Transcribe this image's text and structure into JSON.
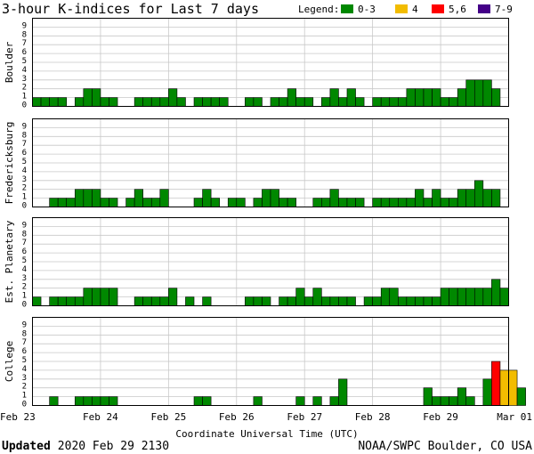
{
  "chart_data": {
    "type": "bar",
    "title": "3-hour K-indices for Last 7 days",
    "legend": {
      "title": "Legend:",
      "placement": "top-right",
      "items": [
        {
          "label": "0-3",
          "color": "#008800"
        },
        {
          "label": "4",
          "color": "#f2bc00"
        },
        {
          "label": "5,6",
          "color": "#ff0000"
        },
        {
          "label": "7-9",
          "color": "#440088"
        }
      ]
    },
    "ylim": [
      0,
      9
    ],
    "y_ticks": [
      "0",
      "1",
      "2",
      "3",
      "4",
      "5",
      "6",
      "7",
      "8",
      "9"
    ],
    "x_ticks": [
      "Feb 23",
      "Feb 24",
      "Feb 25",
      "Feb 26",
      "Feb 27",
      "Feb 28",
      "Feb 29",
      "Mar 01"
    ],
    "xlabel": "Coordinate Universal Time (UTC)",
    "bins_per_day": 8,
    "grid": true,
    "panels": [
      {
        "label": "Boulder",
        "values": [
          1,
          1,
          1,
          1,
          0,
          1,
          2,
          2,
          1,
          1,
          0,
          0,
          1,
          1,
          1,
          1,
          2,
          1,
          0,
          1,
          1,
          1,
          1,
          0,
          0,
          1,
          1,
          0,
          1,
          1,
          2,
          1,
          1,
          0,
          1,
          2,
          1,
          2,
          1,
          0,
          1,
          1,
          1,
          1,
          2,
          2,
          2,
          2,
          1,
          1,
          2,
          3,
          3,
          3,
          2,
          0
        ]
      },
      {
        "label": "Fredericksburg",
        "values": [
          0,
          0,
          1,
          1,
          1,
          2,
          2,
          2,
          1,
          1,
          0,
          1,
          2,
          1,
          1,
          2,
          0,
          0,
          0,
          1,
          2,
          1,
          0,
          1,
          1,
          0,
          1,
          2,
          2,
          1,
          1,
          0,
          0,
          1,
          1,
          2,
          1,
          1,
          1,
          0,
          1,
          1,
          1,
          1,
          1,
          2,
          1,
          2,
          1,
          1,
          2,
          2,
          3,
          2,
          2,
          0
        ]
      },
      {
        "label": "Est. Planetary",
        "values": [
          1,
          0,
          1,
          1,
          1,
          1,
          2,
          2,
          2,
          2,
          0,
          0,
          1,
          1,
          1,
          1,
          2,
          0,
          1,
          0,
          1,
          0,
          0,
          0,
          0,
          1,
          1,
          1,
          0,
          1,
          1,
          2,
          1,
          2,
          1,
          1,
          1,
          1,
          0,
          1,
          1,
          2,
          2,
          1,
          1,
          1,
          1,
          1,
          2,
          2,
          2,
          2,
          2,
          2,
          3,
          2
        ]
      },
      {
        "label": "College",
        "values": [
          0,
          0,
          1,
          0,
          0,
          1,
          1,
          1,
          1,
          1,
          0,
          0,
          0,
          0,
          0,
          0,
          0,
          0,
          0,
          1,
          1,
          0,
          0,
          0,
          0,
          0,
          1,
          0,
          0,
          0,
          0,
          1,
          0,
          1,
          0,
          1,
          3,
          0,
          0,
          0,
          0,
          0,
          0,
          0,
          0,
          0,
          2,
          1,
          1,
          1,
          2,
          1,
          0,
          3,
          5,
          4,
          4,
          2
        ]
      }
    ]
  },
  "footer": {
    "updated_label": "Updated",
    "updated_value": "2020 Feb 29 2130",
    "credit": "NOAA/SWPC Boulder, CO USA"
  }
}
